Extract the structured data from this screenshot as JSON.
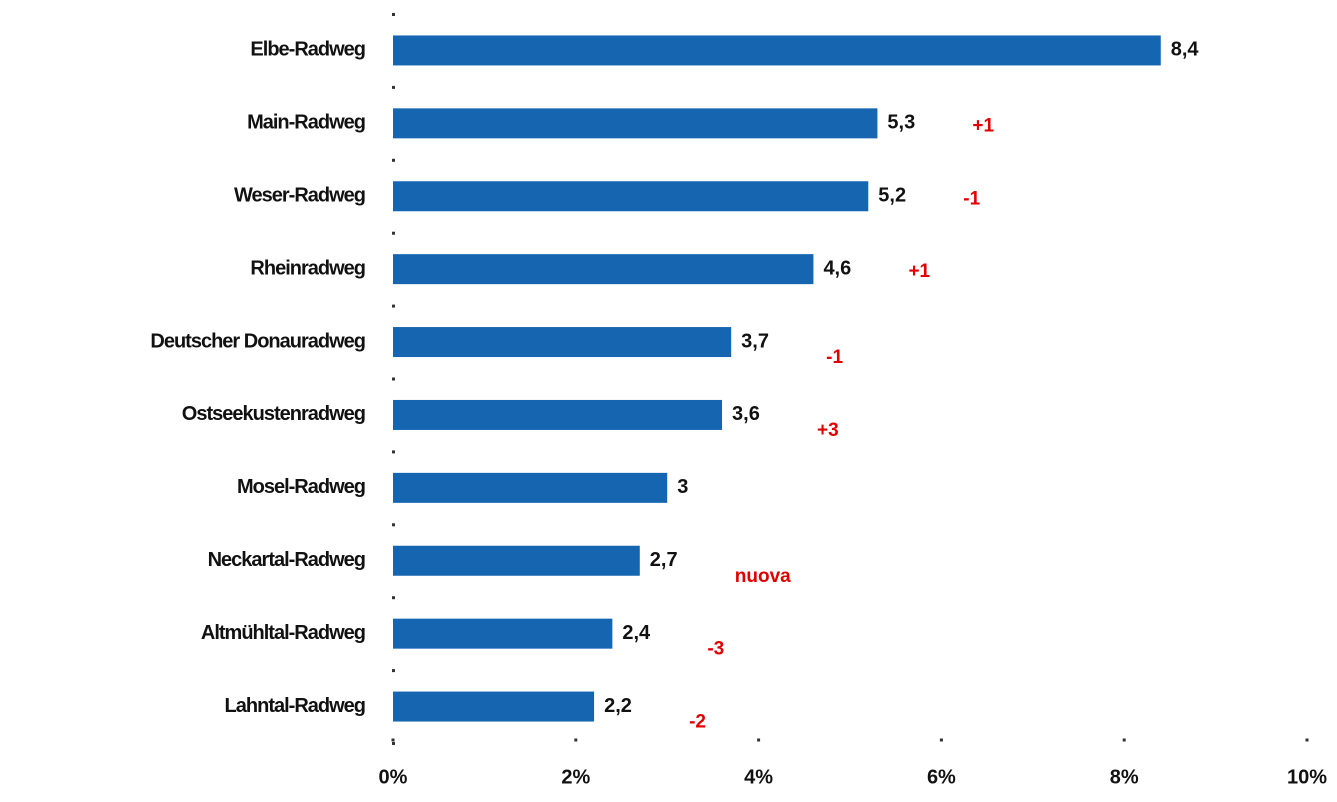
{
  "chart_data": {
    "type": "bar",
    "orientation": "horizontal",
    "categories": [
      "Elbe-Radweg",
      "Main-Radweg",
      "Weser-Radweg",
      "Rheinradweg",
      "Deutscher Donauradweg",
      "Ostseekustenradweg",
      "Mosel-Radweg",
      "Neckartal-Radweg",
      "Altmühltal-Radweg",
      "Lahntal-Radweg"
    ],
    "values": [
      8.4,
      5.3,
      5.2,
      4.6,
      3.7,
      3.6,
      3,
      2.7,
      2.4,
      2.2
    ],
    "value_labels": [
      "8,4",
      "5,3",
      "5,2",
      "4,6",
      "3,7",
      "3,6",
      "3",
      "2,7",
      "2,4",
      "2,2"
    ],
    "annotations": [
      null,
      "+1",
      "-1",
      "+1",
      "-1",
      "+3",
      null,
      "nuova",
      "-3",
      "-2"
    ],
    "annotation_color": "#e00000",
    "color": "#1565b0",
    "xlim": [
      0,
      10
    ],
    "xticks": [
      {
        "value": 0,
        "label": "0%"
      },
      {
        "value": 2,
        "label": "2%"
      },
      {
        "value": 4,
        "label": "4%"
      },
      {
        "value": 6,
        "label": "6%"
      },
      {
        "value": 8,
        "label": "8%"
      },
      {
        "value": 10,
        "label": "10%"
      }
    ],
    "grid": false
  }
}
